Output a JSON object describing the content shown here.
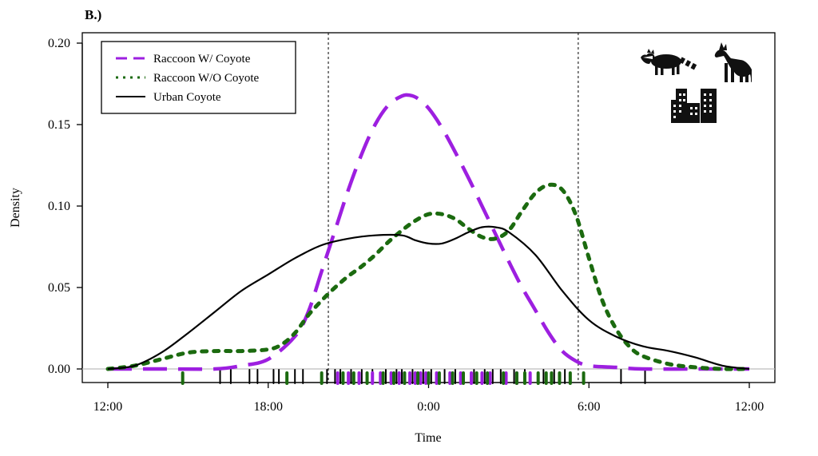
{
  "panel_label": "B.)",
  "chart_data": {
    "type": "line",
    "xlabel": "Time",
    "ylabel": "Density",
    "x_domain_hours": [
      12,
      36
    ],
    "xlim_display": [
      "12:00",
      "12:00"
    ],
    "ylim": [
      0,
      0.2
    ],
    "xticks": [
      {
        "hour": 12,
        "label": "12:00"
      },
      {
        "hour": 18,
        "label": "18:00"
      },
      {
        "hour": 24,
        "label": "0:00"
      },
      {
        "hour": 30,
        "label": "6:00"
      },
      {
        "hour": 36,
        "label": "12:00"
      }
    ],
    "yticks": [
      {
        "value": 0.0,
        "label": "0.00"
      },
      {
        "value": 0.05,
        "label": "0.05"
      },
      {
        "value": 0.1,
        "label": "0.10"
      },
      {
        "value": 0.15,
        "label": "0.15"
      },
      {
        "value": 0.2,
        "label": "0.20"
      }
    ],
    "reference_lines_hours": [
      20.25,
      29.6
    ],
    "legend_position": "top-left",
    "grid": false,
    "series": [
      {
        "name": "Raccoon W/ Coyote",
        "color": "#9d1fe0",
        "style": "dashed",
        "points": [
          [
            12,
            0
          ],
          [
            14,
            0
          ],
          [
            16,
            0
          ],
          [
            17,
            0.002
          ],
          [
            18,
            0.006
          ],
          [
            19,
            0.02
          ],
          [
            19.5,
            0.035
          ],
          [
            20,
            0.06
          ],
          [
            20.5,
            0.085
          ],
          [
            21,
            0.11
          ],
          [
            21.5,
            0.132
          ],
          [
            22,
            0.15
          ],
          [
            22.5,
            0.162
          ],
          [
            23,
            0.1675
          ],
          [
            23.3,
            0.168
          ],
          [
            23.6,
            0.166
          ],
          [
            24,
            0.16
          ],
          [
            24.5,
            0.148
          ],
          [
            25,
            0.133
          ],
          [
            25.5,
            0.117
          ],
          [
            26,
            0.1
          ],
          [
            26.5,
            0.083
          ],
          [
            27,
            0.066
          ],
          [
            27.5,
            0.05
          ],
          [
            28,
            0.036
          ],
          [
            28.5,
            0.022
          ],
          [
            29,
            0.011
          ],
          [
            29.5,
            0.005
          ],
          [
            30,
            0.002
          ],
          [
            31,
            0.001
          ],
          [
            32,
            0
          ],
          [
            34,
            0
          ],
          [
            36,
            0
          ]
        ]
      },
      {
        "name": "Raccoon W/O Coyote",
        "color": "#1b6a0f",
        "style": "dotted",
        "points": [
          [
            12,
            0
          ],
          [
            13,
            0.002
          ],
          [
            14,
            0.006
          ],
          [
            15,
            0.01
          ],
          [
            16,
            0.011
          ],
          [
            17,
            0.011
          ],
          [
            18,
            0.012
          ],
          [
            18.5,
            0.015
          ],
          [
            19,
            0.022
          ],
          [
            19.5,
            0.033
          ],
          [
            20,
            0.042
          ],
          [
            20.5,
            0.05
          ],
          [
            21,
            0.057
          ],
          [
            21.5,
            0.063
          ],
          [
            22,
            0.07
          ],
          [
            22.5,
            0.078
          ],
          [
            23,
            0.085
          ],
          [
            23.5,
            0.091
          ],
          [
            24,
            0.095
          ],
          [
            24.5,
            0.095
          ],
          [
            25,
            0.092
          ],
          [
            25.5,
            0.086
          ],
          [
            26,
            0.081
          ],
          [
            26.5,
            0.08
          ],
          [
            27,
            0.085
          ],
          [
            27.5,
            0.097
          ],
          [
            28,
            0.108
          ],
          [
            28.5,
            0.113
          ],
          [
            29,
            0.11
          ],
          [
            29.5,
            0.095
          ],
          [
            30,
            0.068
          ],
          [
            30.5,
            0.042
          ],
          [
            31,
            0.025
          ],
          [
            31.5,
            0.014
          ],
          [
            32,
            0.008
          ],
          [
            33,
            0.003
          ],
          [
            34,
            0.001
          ],
          [
            35,
            0
          ],
          [
            36,
            0
          ]
        ]
      },
      {
        "name": "Urban Coyote",
        "color": "#000000",
        "style": "solid",
        "points": [
          [
            12,
            0
          ],
          [
            13,
            0.002
          ],
          [
            14,
            0.01
          ],
          [
            15,
            0.022
          ],
          [
            16,
            0.035
          ],
          [
            17,
            0.048
          ],
          [
            18,
            0.058
          ],
          [
            19,
            0.068
          ],
          [
            20,
            0.076
          ],
          [
            21,
            0.08
          ],
          [
            22,
            0.082
          ],
          [
            23,
            0.082
          ],
          [
            23.5,
            0.079
          ],
          [
            24,
            0.077
          ],
          [
            24.5,
            0.077
          ],
          [
            25,
            0.08
          ],
          [
            25.5,
            0.084
          ],
          [
            26,
            0.087
          ],
          [
            26.5,
            0.087
          ],
          [
            27,
            0.084
          ],
          [
            28,
            0.07
          ],
          [
            29,
            0.048
          ],
          [
            30,
            0.03
          ],
          [
            31,
            0.02
          ],
          [
            32,
            0.014
          ],
          [
            33,
            0.011
          ],
          [
            34,
            0.007
          ],
          [
            35,
            0.002
          ],
          [
            36,
            0
          ]
        ]
      }
    ],
    "rugs": [
      {
        "series": "Urban Coyote",
        "color": "#000000",
        "hours": [
          16.2,
          16.6,
          17.3,
          17.6,
          18.2,
          18.4,
          19.0,
          19.3,
          20.2,
          20.5,
          20.7,
          21.1,
          21.5,
          21.9,
          22.4,
          22.8,
          23.0,
          23.4,
          23.8,
          24.1,
          24.6,
          25.0,
          25.7,
          26.1,
          26.4,
          26.7,
          27.2,
          27.6,
          28.3,
          28.7,
          29.1,
          31.2,
          32.1
        ]
      },
      {
        "series": "Raccoon W/ Coyote",
        "color": "#9d1fe0",
        "hours": [
          20.6,
          21.0,
          21.4,
          21.9,
          22.2,
          22.6,
          22.9,
          23.1,
          23.3,
          23.5,
          23.7,
          23.9,
          24.3,
          24.8,
          25.2,
          25.6,
          26.0,
          26.3,
          26.9,
          27.3,
          27.8
        ]
      },
      {
        "series": "Raccoon W/O Coyote",
        "color": "#1b6a0f",
        "hours": [
          14.8,
          18.7,
          20.0,
          20.8,
          21.2,
          21.7,
          22.3,
          22.7,
          23.1,
          23.6,
          24.0,
          24.4,
          24.9,
          25.3,
          25.8,
          26.2,
          26.8,
          27.3,
          27.6,
          28.1,
          28.4,
          28.6,
          28.9,
          29.3,
          29.8
        ]
      }
    ]
  },
  "icons": [
    "raccoon-icon",
    "coyote-icon",
    "city-buildings-icon"
  ]
}
